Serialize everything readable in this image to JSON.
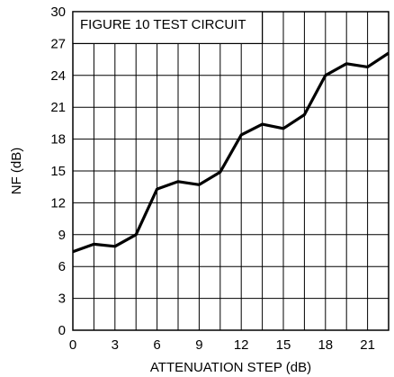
{
  "chart_data": {
    "type": "line",
    "title": "",
    "xlabel": "ATTENUATION STEP (dB)",
    "ylabel": "NF (dB)",
    "annotation": "FIGURE 10 TEST CIRCUIT",
    "xlim": [
      0,
      22.5
    ],
    "ylim": [
      0,
      30
    ],
    "xticks": [
      "0",
      "3",
      "6",
      "9",
      "12",
      "15",
      "18",
      "21"
    ],
    "xtick_values": [
      0,
      3,
      6,
      9,
      12,
      15,
      18,
      21
    ],
    "yticks": [
      "0",
      "3",
      "6",
      "9",
      "12",
      "15",
      "18",
      "21",
      "24",
      "27",
      "30"
    ],
    "ytick_values": [
      0,
      3,
      6,
      9,
      12,
      15,
      18,
      21,
      24,
      27,
      30
    ],
    "x_grid_step": 1.5,
    "grid": true,
    "series": [
      {
        "x": [
          0,
          1.5,
          3,
          4.5,
          6,
          7.5,
          9,
          10.5,
          12,
          13.5,
          15,
          16.5,
          18,
          19.5,
          21,
          22.5
        ],
        "values": [
          7.4,
          8.1,
          7.9,
          9.0,
          13.3,
          14.0,
          13.7,
          14.9,
          18.4,
          19.4,
          19.0,
          20.3,
          24.0,
          25.1,
          24.8,
          26.1
        ]
      }
    ]
  }
}
